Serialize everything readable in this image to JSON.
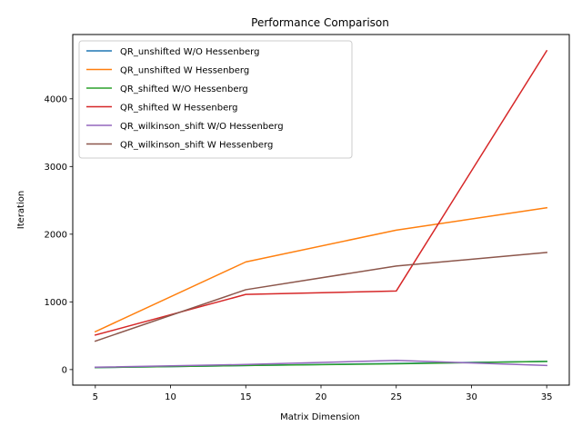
{
  "chart_data": {
    "type": "line",
    "title": "Performance Comparison",
    "xlabel": "Matrix Dimension",
    "ylabel": "Iteration",
    "x": [
      5,
      15,
      25,
      35
    ],
    "xlim": [
      3.5,
      36.5
    ],
    "ylim": [
      -230,
      4950
    ],
    "xticks": [
      5,
      10,
      15,
      20,
      25,
      30,
      35
    ],
    "yticks": [
      0,
      1000,
      2000,
      3000,
      4000
    ],
    "grid": false,
    "legend_position": "upper-left",
    "series": [
      {
        "name": "QR_unshifted W/O Hessenberg",
        "color": "#1f77b4",
        "values": [
          30,
          60,
          90,
          120
        ]
      },
      {
        "name": "QR_unshifted W Hessenberg",
        "color": "#ff7f0e",
        "values": [
          560,
          1590,
          2060,
          2390
        ]
      },
      {
        "name": "QR_shifted W/O Hessenberg",
        "color": "#2ca02c",
        "values": [
          30,
          60,
          85,
          120
        ]
      },
      {
        "name": "QR_shifted W Hessenberg",
        "color": "#d62728",
        "values": [
          510,
          1110,
          1160,
          4710
        ]
      },
      {
        "name": "QR_wilkinson_shift W/O Hessenberg",
        "color": "#9467bd",
        "values": [
          35,
          75,
          135,
          60
        ]
      },
      {
        "name": "QR_wilkinson_shift W Hessenberg",
        "color": "#8c564b",
        "values": [
          420,
          1180,
          1530,
          1730
        ]
      }
    ]
  }
}
